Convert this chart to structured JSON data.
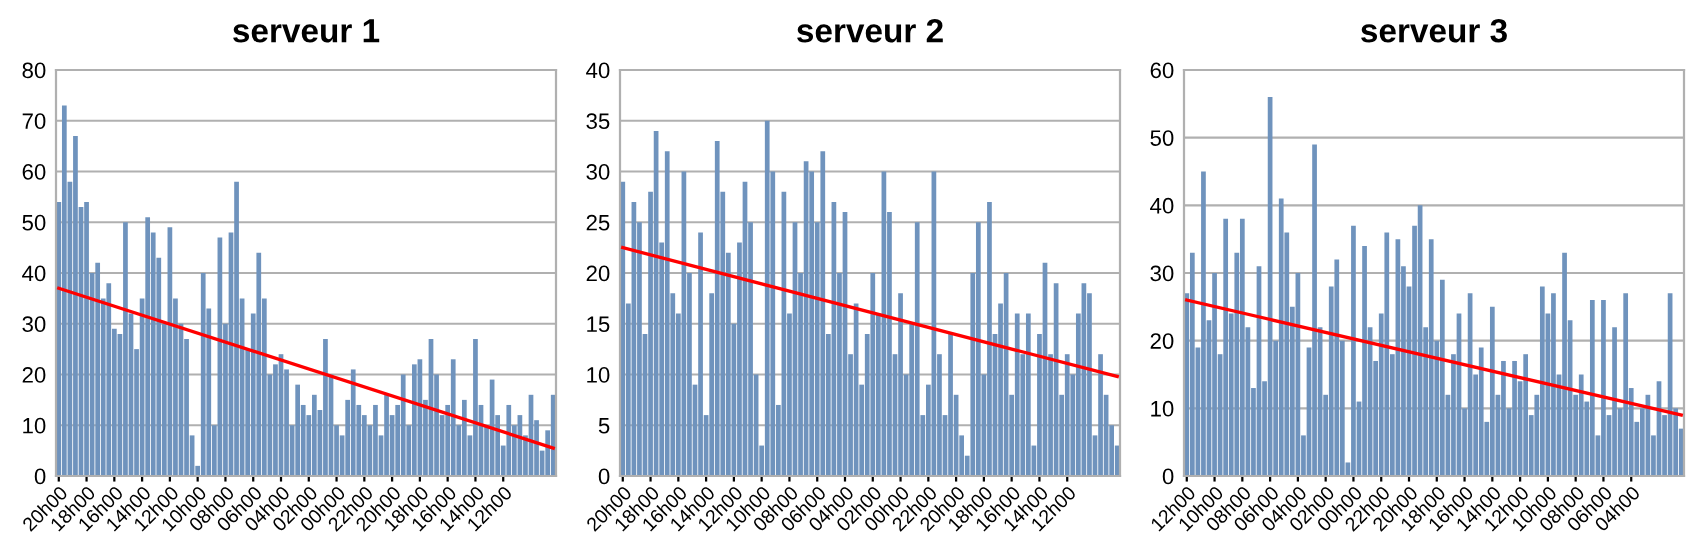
{
  "chart_data": [
    {
      "type": "bar",
      "title": "serveur 1",
      "categories": [
        "20h00",
        null,
        null,
        null,
        null,
        "18h00",
        null,
        null,
        null,
        null,
        "16h00",
        null,
        null,
        null,
        null,
        "14h00",
        null,
        null,
        null,
        null,
        "12h00",
        null,
        null,
        null,
        null,
        "10h00",
        null,
        null,
        null,
        null,
        "08h00",
        null,
        null,
        null,
        null,
        "06h00",
        null,
        null,
        null,
        null,
        "04h00",
        null,
        null,
        null,
        null,
        "02h00",
        null,
        null,
        null,
        null,
        "00h00",
        null,
        null,
        null,
        null,
        "22h00",
        null,
        null,
        null,
        null,
        "20h00",
        null,
        null,
        null,
        null,
        "18h00",
        null,
        null,
        null,
        null,
        "16h00",
        null,
        null,
        null,
        null,
        "14h00",
        null,
        null,
        null,
        null,
        "12h00",
        null,
        null,
        null,
        null,
        null,
        null,
        null,
        null,
        null
      ],
      "series": [
        {
          "color": "#6f93bd",
          "values": [
            54,
            73,
            58,
            67,
            53,
            54,
            40,
            42,
            35,
            38,
            29,
            28,
            50,
            32,
            25,
            35,
            51,
            48,
            43,
            30,
            49,
            35,
            30,
            27,
            8,
            2,
            40,
            33,
            10,
            47,
            30,
            48,
            58,
            35,
            25,
            32,
            44,
            35,
            20,
            22,
            24,
            21,
            10,
            18,
            14,
            12,
            16,
            13,
            27,
            20,
            10,
            8,
            15,
            21,
            14,
            12,
            10,
            14,
            8,
            16,
            12,
            14,
            20,
            10,
            22,
            23,
            15,
            27,
            20,
            12,
            14,
            23,
            10,
            15,
            8,
            27,
            14,
            10,
            19,
            12,
            6,
            14,
            10,
            12,
            8,
            16,
            11,
            5,
            9,
            16
          ]
        },
        {
          "type": "line",
          "color": "#ff0000",
          "values": [
            37,
            null,
            null,
            null,
            null,
            null,
            null,
            null,
            null,
            null,
            null,
            null,
            null,
            null,
            null,
            null,
            null,
            null,
            null,
            null,
            null,
            null,
            null,
            null,
            null,
            null,
            null,
            null,
            null,
            null,
            null,
            null,
            null,
            null,
            null,
            null,
            null,
            null,
            null,
            null,
            null,
            null,
            null,
            null,
            null,
            null,
            null,
            null,
            null,
            null,
            null,
            null,
            null,
            null,
            null,
            null,
            null,
            null,
            null,
            null,
            null,
            null,
            null,
            null,
            null,
            null,
            null,
            null,
            null,
            null,
            null,
            null,
            null,
            null,
            null,
            null,
            null,
            null,
            null,
            null,
            null,
            null,
            null,
            null,
            null,
            null,
            null,
            null,
            null,
            5.5
          ]
        }
      ],
      "ylim": [
        0,
        80
      ],
      "yticks": [
        0,
        10,
        20,
        30,
        40,
        50,
        60,
        70,
        80
      ],
      "grid": "y",
      "legend": false
    },
    {
      "type": "bar",
      "title": "serveur 2",
      "categories": [
        "20h00",
        null,
        null,
        null,
        null,
        "18h00",
        null,
        null,
        null,
        null,
        "16h00",
        null,
        null,
        null,
        null,
        "14h00",
        null,
        null,
        null,
        null,
        "12h00",
        null,
        null,
        null,
        null,
        "10h00",
        null,
        null,
        null,
        null,
        "08h00",
        null,
        null,
        null,
        null,
        "06h00",
        null,
        null,
        null,
        null,
        "04h00",
        null,
        null,
        null,
        null,
        "02h00",
        null,
        null,
        null,
        null,
        "00h00",
        null,
        null,
        null,
        null,
        "22h00",
        null,
        null,
        null,
        null,
        "20h00",
        null,
        null,
        null,
        null,
        "18h00",
        null,
        null,
        null,
        null,
        "16h00",
        null,
        null,
        null,
        null,
        "14h00",
        null,
        null,
        null,
        null,
        "12h00",
        null,
        null,
        null,
        null,
        null,
        null,
        null,
        null,
        null
      ],
      "series": [
        {
          "color": "#6f93bd",
          "values": [
            29,
            17,
            27,
            25,
            14,
            28,
            34,
            23,
            32,
            18,
            16,
            30,
            20,
            9,
            24,
            6,
            18,
            33,
            28,
            22,
            15,
            23,
            29,
            25,
            10,
            3,
            35,
            30,
            7,
            28,
            16,
            25,
            20,
            31,
            30,
            25,
            32,
            14,
            27,
            20,
            26,
            12,
            17,
            9,
            14,
            20,
            16,
            30,
            26,
            12,
            18,
            10,
            15,
            25,
            6,
            9,
            30,
            12,
            6,
            14,
            8,
            4,
            2,
            20,
            25,
            10,
            27,
            14,
            17,
            20,
            8,
            16,
            12,
            16,
            3,
            14,
            21,
            12,
            19,
            8,
            12,
            10,
            16,
            19,
            18,
            4,
            12,
            8,
            5,
            3
          ]
        },
        {
          "type": "line",
          "color": "#ff0000",
          "values": [
            22.5,
            null,
            null,
            null,
            null,
            null,
            null,
            null,
            null,
            null,
            null,
            null,
            null,
            null,
            null,
            null,
            null,
            null,
            null,
            null,
            null,
            null,
            null,
            null,
            null,
            null,
            null,
            null,
            null,
            null,
            null,
            null,
            null,
            null,
            null,
            null,
            null,
            null,
            null,
            null,
            null,
            null,
            null,
            null,
            null,
            null,
            null,
            null,
            null,
            null,
            null,
            null,
            null,
            null,
            null,
            null,
            null,
            null,
            null,
            null,
            null,
            null,
            null,
            null,
            null,
            null,
            null,
            null,
            null,
            null,
            null,
            null,
            null,
            null,
            null,
            null,
            null,
            null,
            null,
            null,
            null,
            null,
            null,
            null,
            null,
            null,
            null,
            null,
            null,
            9.8
          ]
        }
      ],
      "ylim": [
        0,
        40
      ],
      "yticks": [
        0,
        5,
        10,
        15,
        20,
        25,
        30,
        35,
        40
      ],
      "grid": "y",
      "legend": false
    },
    {
      "type": "bar",
      "title": "serveur 3",
      "categories": [
        "12h00",
        null,
        null,
        null,
        null,
        "10h00",
        null,
        null,
        null,
        null,
        "08h00",
        null,
        null,
        null,
        null,
        "06h00",
        null,
        null,
        null,
        null,
        "04h00",
        null,
        null,
        null,
        null,
        "02h00",
        null,
        null,
        null,
        null,
        "00h00",
        null,
        null,
        null,
        null,
        "22h00",
        null,
        null,
        null,
        null,
        "20h00",
        null,
        null,
        null,
        null,
        "18h00",
        null,
        null,
        null,
        null,
        "16h00",
        null,
        null,
        null,
        null,
        "14h00",
        null,
        null,
        null,
        null,
        "12h00",
        null,
        null,
        null,
        null,
        "10h00",
        null,
        null,
        null,
        null,
        "08h00",
        null,
        null,
        null,
        null,
        "06h00",
        null,
        null,
        null,
        null,
        "04h00",
        null,
        null,
        null,
        null,
        null,
        null,
        null,
        null,
        null
      ],
      "series": [
        {
          "color": "#6f93bd",
          "values": [
            27,
            33,
            19,
            45,
            23,
            30,
            18,
            38,
            24,
            33,
            38,
            22,
            13,
            31,
            14,
            56,
            20,
            41,
            36,
            25,
            30,
            6,
            19,
            49,
            22,
            12,
            28,
            32,
            20,
            2,
            37,
            11,
            34,
            22,
            17,
            24,
            36,
            18,
            35,
            31,
            28,
            37,
            40,
            22,
            35,
            20,
            29,
            12,
            18,
            24,
            10,
            27,
            15,
            19,
            8,
            25,
            12,
            17,
            10,
            17,
            14,
            18,
            9,
            12,
            28,
            24,
            27,
            15,
            33,
            23,
            12,
            15,
            11,
            26,
            6,
            26,
            9,
            22,
            10,
            27,
            13,
            8,
            10,
            12,
            6,
            14,
            9,
            27,
            10,
            7
          ]
        },
        {
          "type": "line",
          "color": "#ff0000",
          "values": [
            26,
            null,
            null,
            null,
            null,
            null,
            null,
            null,
            null,
            null,
            null,
            null,
            null,
            null,
            null,
            null,
            null,
            null,
            null,
            null,
            null,
            null,
            null,
            null,
            null,
            null,
            null,
            null,
            null,
            null,
            null,
            null,
            null,
            null,
            null,
            null,
            null,
            null,
            null,
            null,
            null,
            null,
            null,
            null,
            null,
            null,
            null,
            null,
            null,
            null,
            null,
            null,
            null,
            null,
            null,
            null,
            null,
            null,
            null,
            null,
            null,
            null,
            null,
            null,
            null,
            null,
            null,
            null,
            null,
            null,
            null,
            null,
            null,
            null,
            null,
            null,
            null,
            null,
            null,
            null,
            null,
            null,
            null,
            null,
            null,
            null,
            null,
            null,
            null,
            9
          ]
        }
      ],
      "ylim": [
        0,
        60
      ],
      "yticks": [
        0,
        10,
        20,
        30,
        40,
        50,
        60
      ],
      "grid": "y",
      "legend": false
    }
  ]
}
